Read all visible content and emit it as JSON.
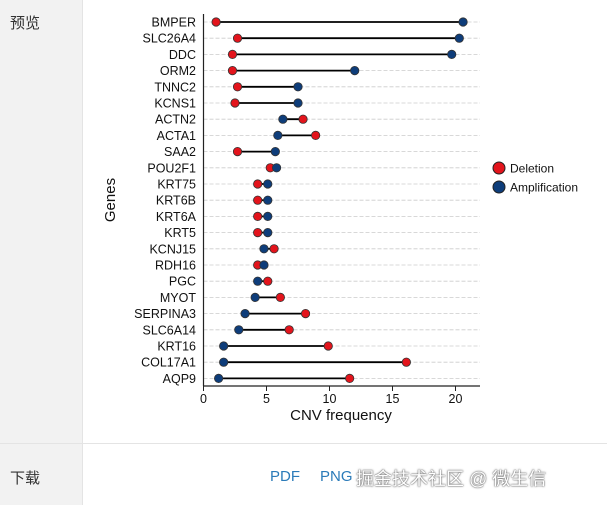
{
  "labels": {
    "preview": "预览",
    "download": "下载"
  },
  "links": [
    "PDF",
    "PNG"
  ],
  "watermark": "掘金技术社区 @ 微生信",
  "colors": {
    "deletion": "#e3141c",
    "amplification": "#0e3d7a",
    "grid": "#cccccc"
  },
  "chart_data": {
    "type": "dumbbell",
    "title": "",
    "xlabel": "CNV frequency",
    "ylabel": "Genes",
    "xlim": [
      0,
      22
    ],
    "xticks": [
      0,
      5,
      10,
      15,
      20
    ],
    "legend": {
      "placement": "right",
      "entries": [
        {
          "name": "Deletion",
          "color": "#e3141c"
        },
        {
          "name": "Amplification",
          "color": "#0e3d7a"
        }
      ]
    },
    "genes": [
      "BMPER",
      "SLC26A4",
      "DDC",
      "ORM2",
      "TNNC2",
      "KCNS1",
      "ACTN2",
      "ACTA1",
      "SAA2",
      "POU2F1",
      "KRT75",
      "KRT6B",
      "KRT6A",
      "KRT5",
      "KCNJ15",
      "RDH16",
      "PGC",
      "MYOT",
      "SERPINA3",
      "SLC6A14",
      "KRT16",
      "COL17A1",
      "AQP9"
    ],
    "series": [
      {
        "name": "Deletion",
        "values": [
          1.0,
          2.7,
          2.3,
          2.3,
          2.7,
          2.5,
          7.9,
          8.9,
          2.7,
          5.3,
          4.3,
          4.3,
          4.3,
          4.3,
          5.6,
          4.3,
          5.1,
          6.1,
          8.1,
          6.8,
          9.9,
          16.1,
          11.6
        ]
      },
      {
        "name": "Amplification",
        "values": [
          20.6,
          20.3,
          19.7,
          12.0,
          7.5,
          7.5,
          6.3,
          5.9,
          5.7,
          5.8,
          5.1,
          5.1,
          5.1,
          5.1,
          4.8,
          4.8,
          4.3,
          4.1,
          3.3,
          2.8,
          1.6,
          1.6,
          1.2
        ]
      }
    ]
  }
}
